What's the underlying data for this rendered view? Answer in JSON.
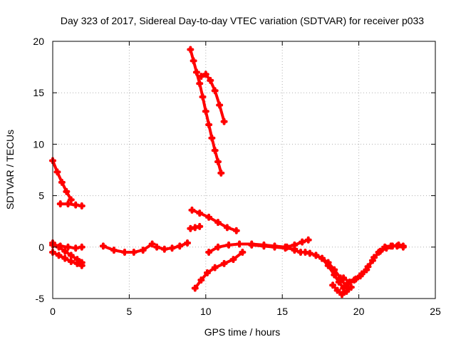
{
  "chart_data": {
    "type": "scatter",
    "title": "Day 323 of 2017, Sidereal Day-to-day VTEC variation (SDTVAR) for receiver p033",
    "xlabel": "GPS time / hours",
    "ylabel": "SDTVAR / TECUs",
    "xlim": [
      0,
      25
    ],
    "ylim": [
      -5,
      20
    ],
    "xticks": [
      "0",
      "5",
      "10",
      "15",
      "20",
      "25"
    ],
    "yticks": [
      "-5",
      "0",
      "5",
      "10",
      "15",
      "20"
    ],
    "grid": true,
    "marker": "plus",
    "color": "#ff0000",
    "tracks": [
      {
        "x": [
          0.0,
          0.3,
          0.6,
          0.9,
          1.2
        ],
        "y": [
          8.4,
          7.3,
          6.3,
          5.4,
          4.6
        ]
      },
      {
        "x": [
          0.5,
          1.0,
          1.5,
          1.9
        ],
        "y": [
          4.2,
          4.2,
          4.1,
          4.0
        ]
      },
      {
        "x": [
          0.0,
          0.4,
          0.8,
          1.2,
          1.6,
          1.9
        ],
        "y": [
          0.4,
          0.0,
          -0.4,
          -0.8,
          -1.2,
          -1.5
        ]
      },
      {
        "x": [
          0.0,
          0.5,
          1.0,
          1.5,
          1.9
        ],
        "y": [
          0.2,
          0.1,
          0.0,
          -0.1,
          0.0
        ]
      },
      {
        "x": [
          0.0,
          0.4,
          0.8,
          1.2,
          1.6,
          1.9
        ],
        "y": [
          -0.5,
          -0.8,
          -1.1,
          -1.4,
          -1.6,
          -1.8
        ]
      },
      {
        "x": [
          3.3,
          4.0,
          4.7,
          5.3,
          5.9,
          6.5
        ],
        "y": [
          0.1,
          -0.3,
          -0.5,
          -0.5,
          -0.3,
          0.3
        ]
      },
      {
        "x": [
          6.8,
          7.3,
          7.8,
          8.3,
          8.8
        ],
        "y": [
          0.0,
          -0.2,
          -0.1,
          0.1,
          0.4
        ]
      },
      {
        "x": [
          9.0,
          9.2,
          9.4,
          9.6,
          9.8,
          10.0,
          10.2,
          10.4,
          10.6,
          10.8,
          11.0
        ],
        "y": [
          19.2,
          18.1,
          17.0,
          15.9,
          14.6,
          13.2,
          11.9,
          10.6,
          9.4,
          8.3,
          7.2
        ]
      },
      {
        "x": [
          9.7,
          10.0,
          10.3,
          10.6,
          10.9,
          11.2
        ],
        "y": [
          16.6,
          16.8,
          16.2,
          15.2,
          13.8,
          12.2
        ]
      },
      {
        "x": [
          9.1,
          9.6,
          10.2,
          10.8,
          11.4,
          12.0
        ],
        "y": [
          3.6,
          3.3,
          2.9,
          2.4,
          1.9,
          1.6
        ]
      },
      {
        "x": [
          9.0,
          9.3,
          9.6
        ],
        "y": [
          1.8,
          1.9,
          2.0
        ]
      },
      {
        "x": [
          9.3,
          9.7,
          10.1,
          10.6,
          11.2,
          11.8,
          12.4
        ],
        "y": [
          -4.0,
          -3.2,
          -2.5,
          -2.0,
          -1.6,
          -1.2,
          -0.5
        ]
      },
      {
        "x": [
          10.2,
          10.8,
          11.5,
          12.2,
          13.0,
          13.8,
          14.5,
          15.2,
          15.8,
          16.3,
          16.7
        ],
        "y": [
          -0.5,
          0.0,
          0.2,
          0.3,
          0.3,
          0.2,
          0.1,
          0.0,
          0.2,
          0.5,
          0.7
        ]
      },
      {
        "x": [
          13.0,
          13.8,
          14.5,
          15.2,
          15.8
        ],
        "y": [
          0.2,
          0.1,
          0.0,
          -0.1,
          -0.2
        ]
      },
      {
        "x": [
          15.3,
          15.8,
          16.2,
          16.5,
          16.8,
          17.2,
          17.6,
          18.0,
          18.4,
          18.7,
          19.0
        ],
        "y": [
          0.0,
          -0.3,
          -0.5,
          -0.5,
          -0.6,
          -0.8,
          -1.1,
          -1.8,
          -2.7,
          -3.4,
          -4.0
        ]
      },
      {
        "x": [
          17.2,
          17.6,
          18.0,
          18.4,
          18.8,
          19.2
        ],
        "y": [
          -0.8,
          -1.1,
          -1.5,
          -2.2,
          -3.0,
          -3.9
        ]
      },
      {
        "x": [
          18.3,
          18.6,
          18.9,
          19.2,
          19.5
        ],
        "y": [
          -3.7,
          -4.2,
          -4.6,
          -4.3,
          -3.9
        ]
      },
      {
        "x": [
          19.3,
          19.7,
          20.1,
          20.5,
          20.9,
          21.3,
          21.7,
          22.1,
          22.5,
          22.9
        ],
        "y": [
          -3.5,
          -3.2,
          -2.8,
          -2.2,
          -1.3,
          -0.5,
          0.0,
          0.1,
          0.1,
          0.1
        ]
      },
      {
        "x": [
          19.0,
          19.4,
          19.8,
          20.2,
          20.6,
          21.0,
          21.4,
          21.8,
          22.2,
          22.6,
          22.9
        ],
        "y": [
          -3.0,
          -3.4,
          -3.1,
          -2.6,
          -1.9,
          -1.0,
          -0.4,
          -0.1,
          0.1,
          0.2,
          0.0
        ]
      }
    ]
  }
}
